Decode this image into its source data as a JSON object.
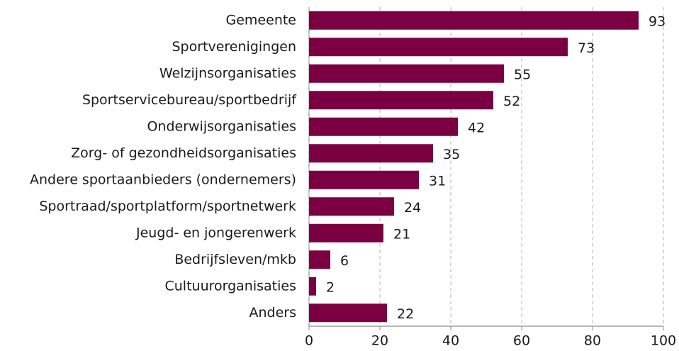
{
  "chart_data": {
    "type": "bar",
    "categories": [
      "Gemeente",
      "Sportverenigingen",
      "Welzijnsorganisaties",
      "Sportservicebureau/sportbedrijf",
      "Onderwijsorganisaties",
      "Zorg- of gezondheidsorganisaties",
      "Andere sportaanbieders (ondernemers)",
      "Sportraad/sportplatform/sportnetwerk",
      "Jeugd- en jongerenwerk",
      "Bedrijfsleven/mkb",
      "Cultuurorganisaties",
      "Anders"
    ],
    "values": [
      93,
      73,
      55,
      52,
      42,
      35,
      31,
      24,
      21,
      6,
      2,
      22
    ],
    "color": "#7b0041",
    "xlim": [
      0,
      100
    ],
    "xticks": [
      0,
      20,
      40,
      60,
      80,
      100
    ],
    "grid": true
  }
}
